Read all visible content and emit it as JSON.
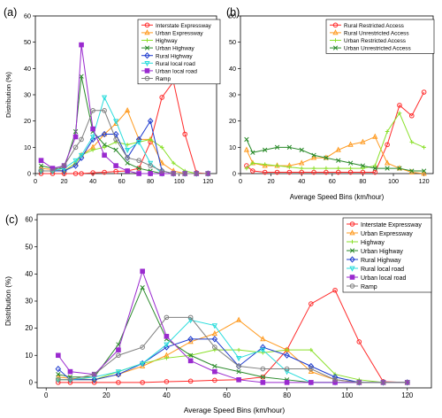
{
  "chart_data": [
    {
      "panel_label": "(a)",
      "type": "line",
      "xlabel": "",
      "ylabel": "Distribution (%)",
      "x_ticks": [
        0,
        20,
        40,
        60,
        80,
        100,
        120
      ],
      "y_ticks": [
        0,
        10,
        20,
        30,
        40,
        50,
        60
      ],
      "xlim": [
        0,
        126
      ],
      "ylim": [
        0,
        60
      ],
      "grid": false,
      "legend": "top-right",
      "x": [
        4,
        12,
        20,
        28,
        32,
        40,
        48,
        56,
        64,
        72,
        80,
        88,
        96,
        104,
        112,
        120
      ],
      "series": [
        {
          "name": "Interstate Expressway",
          "color": "#ff2a2a",
          "marker": "circle",
          "values": [
            0,
            0,
            0,
            0,
            0,
            0.3,
            0.5,
            0.8,
            1,
            2,
            12,
            29,
            35,
            15,
            0.3,
            0
          ]
        },
        {
          "name": "Urban Expressway",
          "color": "#ff9a1f",
          "marker": "triangle",
          "values": [
            2,
            1.5,
            1,
            4,
            7,
            10,
            15,
            19,
            24,
            13,
            13,
            4,
            1,
            0,
            0,
            0
          ]
        },
        {
          "name": "Highway",
          "color": "#8ae02a",
          "marker": "plus",
          "values": [
            1,
            1,
            1,
            4,
            7,
            9,
            10,
            12,
            11,
            12,
            13,
            10,
            4,
            1,
            0,
            0
          ]
        },
        {
          "name": "Urban Highway",
          "color": "#2a8a2a",
          "marker": "x",
          "values": [
            3,
            2,
            2,
            16,
            37,
            16,
            11,
            9,
            4,
            2,
            1,
            0,
            0,
            0,
            0,
            0
          ]
        },
        {
          "name": "Rural Highway",
          "color": "#1f3ccf",
          "marker": "diamond",
          "values": [
            1,
            1,
            1,
            3,
            6,
            13,
            15,
            15,
            6,
            13,
            20,
            1,
            0,
            0,
            0,
            0
          ]
        },
        {
          "name": "Rural local road",
          "color": "#2adcdc",
          "marker": "triangle-down",
          "values": [
            1,
            1,
            2,
            5,
            7,
            14,
            29,
            20,
            9,
            12,
            4,
            0,
            0,
            0,
            0,
            0
          ]
        },
        {
          "name": "Urban local road",
          "color": "#9a2acf",
          "marker": "square",
          "values": [
            5,
            2,
            3,
            14,
            49,
            17,
            7,
            3,
            1,
            0,
            0,
            0,
            0,
            0,
            0,
            0
          ]
        },
        {
          "name": "Ramp",
          "color": "#7f7f7f",
          "marker": "circle",
          "values": [
            1,
            1,
            3,
            10,
            13,
            24,
            24,
            13,
            6,
            5,
            3,
            1,
            0,
            0,
            0,
            0
          ]
        }
      ]
    },
    {
      "panel_label": "(b)",
      "type": "line",
      "xlabel": "Average Speed Bins (km/hour)",
      "ylabel": "",
      "x_ticks": [
        0,
        20,
        40,
        60,
        80,
        100,
        120
      ],
      "y_ticks": [
        0,
        10,
        20,
        30,
        40,
        50,
        60
      ],
      "xlim": [
        0,
        126
      ],
      "ylim": [
        0,
        60
      ],
      "grid": false,
      "legend": "top-right",
      "x": [
        4,
        8,
        16,
        24,
        32,
        40,
        48,
        56,
        64,
        72,
        80,
        88,
        96,
        104,
        112,
        120
      ],
      "series": [
        {
          "name": "Rural Restricted Access",
          "color": "#ff2a2a",
          "marker": "circle",
          "values": [
            3,
            1,
            0.5,
            0.5,
            0.5,
            0.5,
            0.5,
            0.5,
            0.5,
            0.5,
            0.5,
            0.5,
            11,
            26,
            22,
            31
          ]
        },
        {
          "name": "Rural Unrestricted Access",
          "color": "#ff9a1f",
          "marker": "triangle",
          "values": [
            9,
            4,
            3,
            3,
            3,
            4,
            6,
            6,
            9,
            11,
            12,
            14,
            4,
            2,
            0.5,
            0
          ]
        },
        {
          "name": "Urban Restricted Access",
          "color": "#8ae02a",
          "marker": "plus",
          "values": [
            2,
            4,
            3.5,
            3,
            2.5,
            2,
            2,
            2,
            2,
            2,
            2,
            3,
            16,
            23,
            12,
            10
          ]
        },
        {
          "name": "Urban Unrestricted Access",
          "color": "#2a8a2a",
          "marker": "x",
          "values": [
            13,
            8,
            9,
            10,
            10,
            9,
            7,
            6,
            5,
            4,
            3,
            2,
            2,
            2,
            1,
            1
          ]
        }
      ]
    },
    {
      "panel_label": "(c)",
      "type": "line",
      "xlabel": "Average Speed Bins (km/hour)",
      "ylabel": "Distribution (%)",
      "x_ticks": [
        0,
        20,
        40,
        60,
        80,
        100,
        120
      ],
      "y_ticks": [
        0,
        10,
        20,
        30,
        40,
        50,
        60
      ],
      "xlim": [
        -3,
        128
      ],
      "ylim": [
        -2,
        62
      ],
      "grid": false,
      "legend": "top-right",
      "x": [
        4,
        8,
        16,
        24,
        32,
        40,
        48,
        56,
        64,
        72,
        80,
        88,
        96,
        104,
        112,
        120
      ],
      "series": [
        {
          "name": "Interstate Expressway",
          "color": "#ff2a2a",
          "marker": "circle",
          "values": [
            0,
            0,
            0,
            0,
            0,
            0.3,
            0.5,
            0.8,
            1,
            2,
            12,
            29,
            34,
            15,
            0.3,
            0
          ]
        },
        {
          "name": "Urban Expressway",
          "color": "#ff9a1f",
          "marker": "triangle",
          "values": [
            2,
            1.5,
            1,
            3,
            6,
            10,
            15,
            18,
            23,
            16,
            12,
            4,
            1,
            0,
            0,
            0
          ]
        },
        {
          "name": "Highway",
          "color": "#8ae02a",
          "marker": "plus",
          "values": [
            1,
            1,
            1,
            4,
            7,
            9,
            10,
            12,
            12,
            11,
            12,
            12,
            3,
            1,
            0,
            0
          ]
        },
        {
          "name": "Urban Highway",
          "color": "#2a8a2a",
          "marker": "x",
          "values": [
            3,
            2,
            2,
            14,
            35,
            16,
            10,
            6,
            4,
            2,
            1,
            0,
            0,
            0,
            0,
            0
          ]
        },
        {
          "name": "Rural Highway",
          "color": "#1f3ccf",
          "marker": "diamond",
          "values": [
            5,
            1,
            1,
            3,
            7,
            13,
            16,
            16,
            6,
            13,
            10,
            6,
            2,
            0,
            0,
            0
          ]
        },
        {
          "name": "Rural local road",
          "color": "#2adcdc",
          "marker": "triangle-down",
          "values": [
            1,
            1,
            2,
            4,
            7,
            14,
            23,
            21,
            9,
            12,
            4,
            0,
            0,
            0,
            0,
            0
          ]
        },
        {
          "name": "Urban local road",
          "color": "#9a2acf",
          "marker": "square",
          "values": [
            10,
            4,
            3,
            12,
            41,
            17,
            8,
            4,
            1,
            0,
            0,
            0,
            0,
            0,
            0,
            0
          ]
        },
        {
          "name": "Ramp",
          "color": "#7f7f7f",
          "marker": "circle",
          "values": [
            1,
            1,
            3,
            10,
            13,
            24,
            24,
            13,
            6,
            5,
            5,
            5,
            1,
            0,
            0,
            0
          ]
        }
      ]
    }
  ]
}
